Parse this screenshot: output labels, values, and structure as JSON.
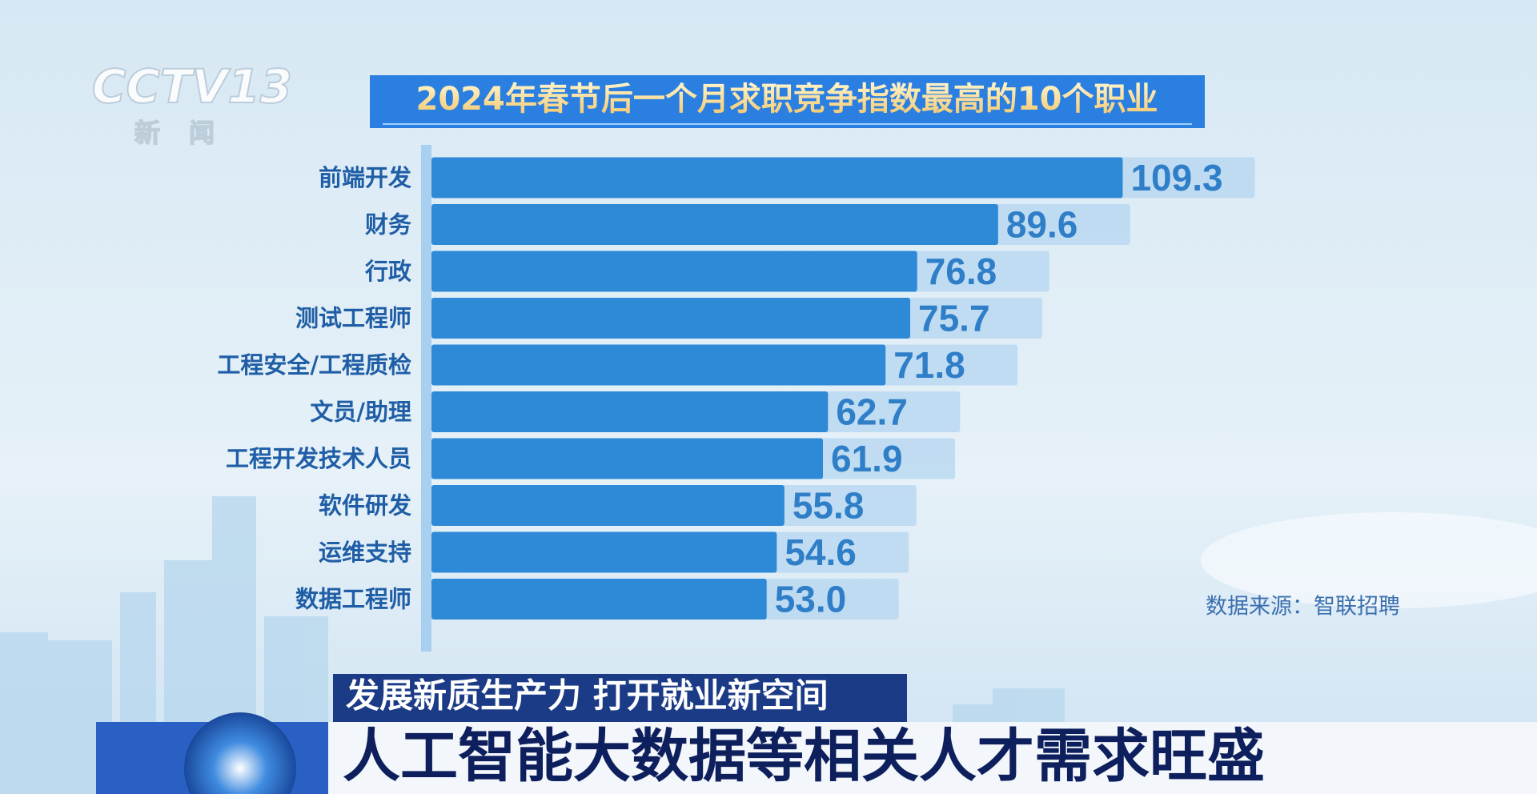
{
  "logo": {
    "channel": "CCTV13",
    "name": "新闻"
  },
  "chart_data": {
    "type": "bar",
    "orientation": "horizontal",
    "title": "2024年春节后一个月求职竞争指数最高的10个职业",
    "categories": [
      "前端开发",
      "财务",
      "行政",
      "测试工程师",
      "工程安全/工程质检",
      "文员/助理",
      "工程开发技术人员",
      "软件研发",
      "运维支持",
      "数据工程师"
    ],
    "values": [
      109.3,
      89.6,
      76.8,
      75.7,
      71.8,
      62.7,
      61.9,
      55.8,
      54.6,
      53.0
    ],
    "value_labels": [
      "109.3",
      "89.6",
      "76.8",
      "75.7",
      "71.8",
      "62.7",
      "61.9",
      "55.8",
      "54.6",
      "53.0"
    ],
    "color": "#2e8ad6"
  },
  "source": "数据来源：智联招聘",
  "banner": {
    "subtitle": "发展新质生产力 打开就业新空间",
    "headline": "人工智能大数据等相关人才需求旺盛"
  }
}
